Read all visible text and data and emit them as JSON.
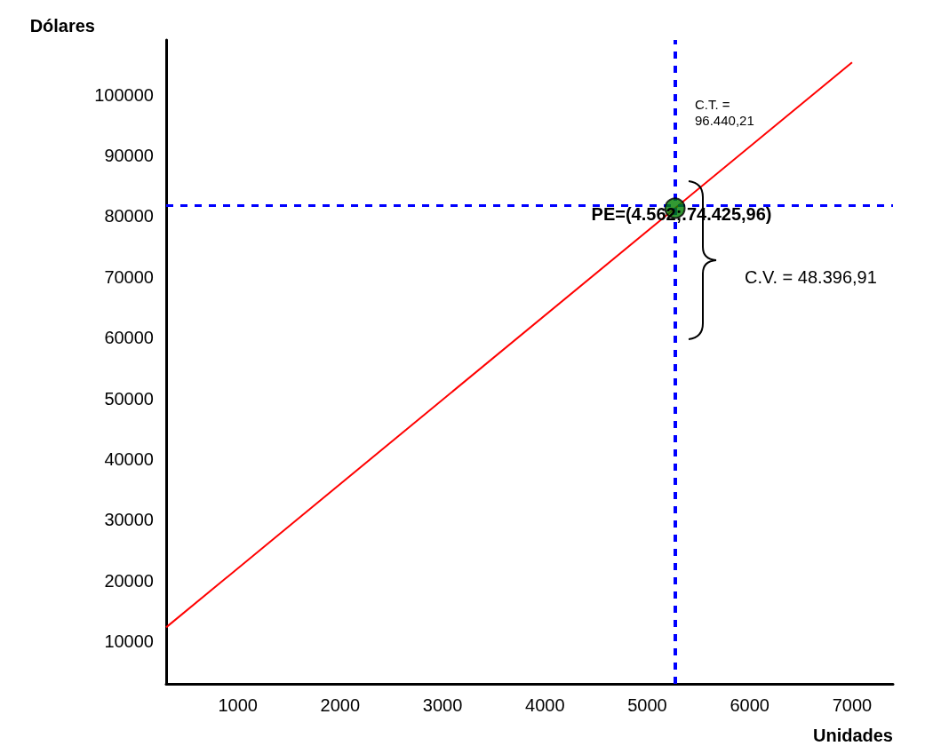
{
  "chart_data": {
    "type": "line",
    "xlabel": "Unidades",
    "ylabel": "Dólares",
    "xlim": [
      300,
      7400
    ],
    "xticks": [
      1000,
      2000,
      3000,
      4000,
      5000,
      6000,
      7000
    ],
    "ylim": [
      3000,
      109000
    ],
    "yticks": [
      10000,
      20000,
      30000,
      40000,
      50000,
      60000,
      70000,
      80000,
      90000,
      100000
    ],
    "grid": false,
    "marker": "none",
    "line_style": "solid",
    "series": [
      {
        "type": "line",
        "color": "#ff0000",
        "x": [
          300,
          7000
        ],
        "values": [
          12300,
          105300
        ]
      },
      {
        "type": "scatter",
        "color": "#008000",
        "marker": "circle",
        "x": [
          5270
        ],
        "values": [
          81300
        ]
      }
    ],
    "ref_lines": [
      {
        "axis": "x",
        "value": 5270,
        "color": "#0000ff",
        "line_style": "dashed"
      },
      {
        "axis": "y",
        "value": 81700,
        "color": "#0000ff",
        "line_style": "dashed"
      }
    ],
    "annotations": [
      "C.T. =\n96.440,21",
      {
        "text": "PE=(4.562;.74.425,96)",
        "x": 5270,
        "y": 81300
      },
      "C.V. = 48.396,91"
    ]
  }
}
